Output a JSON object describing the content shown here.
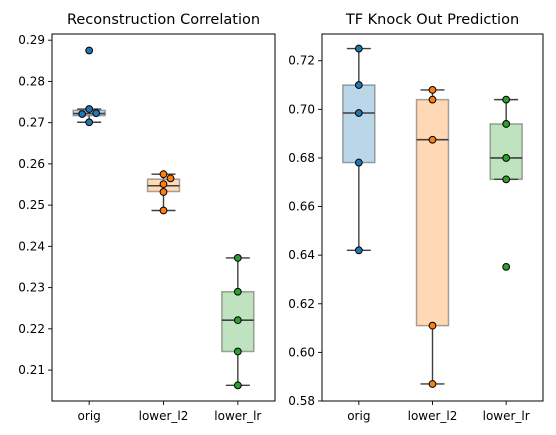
{
  "chart_data": [
    {
      "type": "box",
      "title": "Reconstruction Correlation",
      "categories": [
        "orig",
        "lower_l2",
        "lower_lr"
      ],
      "ylim": [
        0.2025,
        0.2915
      ],
      "yticks": [
        0.21,
        0.22,
        0.23,
        0.24,
        0.25,
        0.26,
        0.27,
        0.28,
        0.29
      ],
      "tick_decimals": 2,
      "colors": [
        "#1f77b4",
        "#ff7f0e",
        "#2ca02c"
      ],
      "boxes": [
        {
          "q1": 0.2717,
          "median": 0.2722,
          "q3": 0.273,
          "whisker_low": 0.2701,
          "whisker_high": 0.2733,
          "outliers": [
            0.2875
          ]
        },
        {
          "q1": 0.2533,
          "median": 0.2547,
          "q3": 0.2563,
          "whisker_low": 0.2487,
          "whisker_high": 0.2575,
          "outliers": []
        },
        {
          "q1": 0.2145,
          "median": 0.2221,
          "q3": 0.229,
          "whisker_low": 0.2063,
          "whisker_high": 0.2372,
          "outliers": []
        }
      ],
      "points": [
        [
          0.2875,
          0.2733,
          0.2723,
          0.2721,
          0.2701
        ],
        [
          0.2575,
          0.2565,
          0.2551,
          0.2532,
          0.2487
        ],
        [
          0.2372,
          0.229,
          0.2221,
          0.2145,
          0.2063
        ]
      ],
      "grid": false
    },
    {
      "type": "box",
      "title": "TF Knock Out Prediction",
      "categories": [
        "orig",
        "lower_l2",
        "lower_lr"
      ],
      "ylim": [
        0.58,
        0.731
      ],
      "yticks": [
        0.58,
        0.6,
        0.62,
        0.64,
        0.66,
        0.68,
        0.7,
        0.72
      ],
      "tick_decimals": 2,
      "colors": [
        "#1f77b4",
        "#ff7f0e",
        "#2ca02c"
      ],
      "boxes": [
        {
          "q1": 0.6781,
          "median": 0.6985,
          "q3": 0.71,
          "whisker_low": 0.642,
          "whisker_high": 0.725,
          "outliers": []
        },
        {
          "q1": 0.611,
          "median": 0.6875,
          "q3": 0.704,
          "whisker_low": 0.587,
          "whisker_high": 0.708,
          "outliers": []
        },
        {
          "q1": 0.6712,
          "median": 0.68,
          "q3": 0.694,
          "whisker_low": 0.6712,
          "whisker_high": 0.704,
          "outliers": [
            0.6352
          ]
        }
      ],
      "points": [
        [
          0.725,
          0.71,
          0.6985,
          0.6781,
          0.642
        ],
        [
          0.708,
          0.704,
          0.6875,
          0.611,
          0.587
        ],
        [
          0.704,
          0.694,
          0.68,
          0.6712,
          0.6352
        ]
      ],
      "grid": false
    }
  ]
}
